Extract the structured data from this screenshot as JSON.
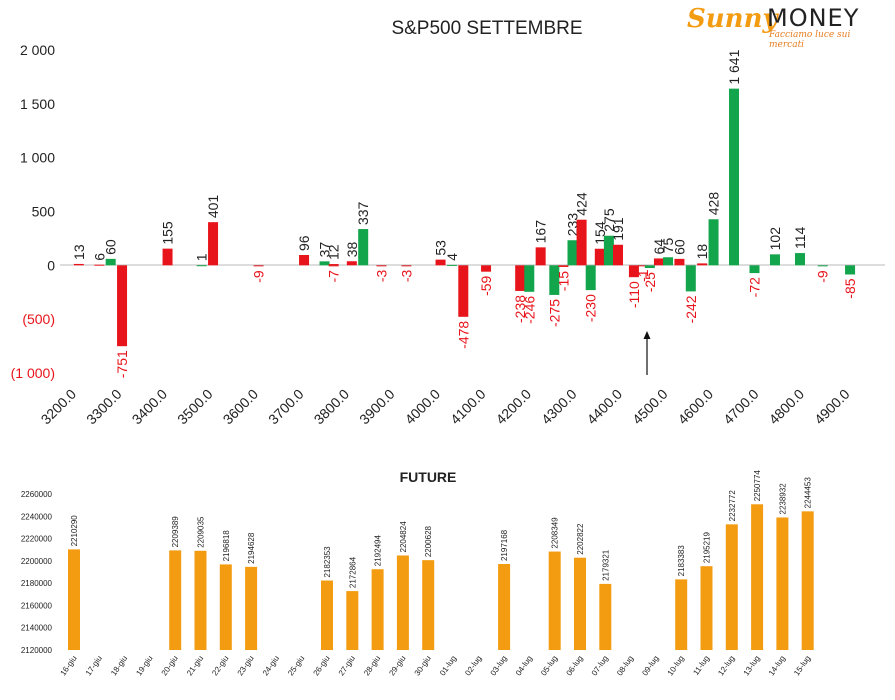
{
  "logo": {
    "brand_a": "Sunny",
    "brand_b": "MONEY",
    "tagline": "Facciamo luce sui mercati"
  },
  "chart_data": [
    {
      "type": "bar",
      "title": "S&P500 SETTEMBRE",
      "xlabel": "",
      "ylabel": "",
      "ylim": [
        -1000,
        2000
      ],
      "y_ticks": [
        2000,
        1500,
        1000,
        500,
        0,
        -500,
        -1000
      ],
      "y_tick_labels": [
        "2 000",
        "1 500",
        "1 000",
        "500",
        "0",
        "(500)",
        "(1 000)"
      ],
      "x_tick_labels": [
        "3200.0",
        "3300.0",
        "3400.0",
        "3500.0",
        "3600.0",
        "3700.0",
        "3800.0",
        "3900.0",
        "4000.0",
        "4100.0",
        "4200.0",
        "4300.0",
        "4400.0",
        "4500.0",
        "4600.0",
        "4700.0",
        "4800.0",
        "4900.0"
      ],
      "colors": {
        "red": "#e8141b",
        "green": "#13a54b",
        "positive_label": "#222222",
        "negative_label": "#e8141b"
      },
      "bars": [
        {
          "pos": 0,
          "offset": 0.15,
          "value": 13,
          "color": "red",
          "label": "13"
        },
        {
          "pos": 1,
          "offset": -0.4,
          "value": 6,
          "color": "red",
          "label": "6"
        },
        {
          "pos": 1,
          "offset": -0.15,
          "value": 60,
          "color": "green",
          "label": "60"
        },
        {
          "pos": 1,
          "offset": 0.1,
          "value": -751,
          "color": "red",
          "label": "-751"
        },
        {
          "pos": 2,
          "offset": 0.1,
          "value": 155,
          "color": "red",
          "label": "155"
        },
        {
          "pos": 3,
          "offset": -0.15,
          "value": 1,
          "color": "green",
          "label": "1"
        },
        {
          "pos": 3,
          "offset": 0.1,
          "value": 401,
          "color": "red",
          "label": "401"
        },
        {
          "pos": 4,
          "offset": 0.1,
          "value": -9,
          "color": "red",
          "label": "-9"
        },
        {
          "pos": 5,
          "offset": 0.1,
          "value": 96,
          "color": "red",
          "label": "96"
        },
        {
          "pos": 5,
          "offset": 0.75,
          "value": -7,
          "color": "red",
          "label": "-7"
        },
        {
          "pos": 6,
          "offset": -0.45,
          "value": 37,
          "color": "green",
          "label": "37"
        },
        {
          "pos": 6,
          "offset": -0.25,
          "value": 12,
          "color": "red",
          "label": "12"
        },
        {
          "pos": 6,
          "offset": 0.15,
          "value": 38,
          "color": "red",
          "label": "38"
        },
        {
          "pos": 6,
          "offset": 0.4,
          "value": 337,
          "color": "green",
          "label": "337"
        },
        {
          "pos": 7,
          "offset": -0.2,
          "value": -3,
          "color": "red",
          "label": "-3"
        },
        {
          "pos": 7,
          "offset": 0.35,
          "value": -3,
          "color": "red",
          "label": "-3"
        },
        {
          "pos": 8,
          "offset": 0.1,
          "value": 53,
          "color": "red",
          "label": "53"
        },
        {
          "pos": 8,
          "offset": 0.35,
          "value": 4,
          "color": "green",
          "label": "4"
        },
        {
          "pos": 8,
          "offset": 0.6,
          "value": -478,
          "color": "red",
          "label": "-478"
        },
        {
          "pos": 9,
          "offset": 0.1,
          "value": -59,
          "color": "red",
          "label": "-59"
        },
        {
          "pos": 9,
          "offset": 0.85,
          "value": -238,
          "color": "red",
          "label": "-238"
        },
        {
          "pos": 10,
          "offset": 0.05,
          "value": -246,
          "color": "green",
          "label": "-246"
        },
        {
          "pos": 10,
          "offset": 0.3,
          "value": 167,
          "color": "red",
          "label": "167"
        },
        {
          "pos": 10,
          "offset": 0.6,
          "value": -275,
          "color": "green",
          "label": "-275"
        },
        {
          "pos": 10,
          "offset": 0.8,
          "value": -15,
          "color": "red",
          "label": "-15"
        },
        {
          "pos": 11,
          "offset": 0.0,
          "value": 233,
          "color": "green",
          "label": "233"
        },
        {
          "pos": 11,
          "offset": 0.2,
          "value": 424,
          "color": "red",
          "label": "424"
        },
        {
          "pos": 11,
          "offset": 0.4,
          "value": -230,
          "color": "green",
          "label": "-230"
        },
        {
          "pos": 11,
          "offset": 0.6,
          "value": 154,
          "color": "red",
          "label": "154"
        },
        {
          "pos": 11,
          "offset": 0.8,
          "value": 275,
          "color": "green",
          "label": "275"
        },
        {
          "pos": 12,
          "offset": 0.0,
          "value": 191,
          "color": "red",
          "label": "191"
        },
        {
          "pos": 12,
          "offset": 0.35,
          "value": -110,
          "color": "red",
          "label": "-110"
        },
        {
          "pos": 12,
          "offset": 0.55,
          "value": -1,
          "color": "red",
          "label": "-1"
        },
        {
          "pos": 12,
          "offset": 0.7,
          "value": -25,
          "color": "green",
          "label": "-25"
        },
        {
          "pos": 12,
          "offset": 0.9,
          "value": 64,
          "color": "red",
          "label": "64"
        },
        {
          "pos": 13,
          "offset": 0.1,
          "value": 75,
          "color": "green",
          "label": "75"
        },
        {
          "pos": 13,
          "offset": 0.35,
          "value": 60,
          "color": "red",
          "label": "60"
        },
        {
          "pos": 13,
          "offset": 0.6,
          "value": -242,
          "color": "green",
          "label": "-242"
        },
        {
          "pos": 13,
          "offset": 0.85,
          "value": 18,
          "color": "red",
          "label": "18"
        },
        {
          "pos": 14,
          "offset": 0.1,
          "value": 428,
          "color": "green",
          "label": "428"
        },
        {
          "pos": 14,
          "offset": 0.55,
          "value": 1641,
          "color": "green",
          "label": "1 641"
        },
        {
          "pos": 15,
          "offset": 0.0,
          "value": -72,
          "color": "green",
          "label": "-72"
        },
        {
          "pos": 15,
          "offset": 0.45,
          "value": 102,
          "color": "green",
          "label": "102"
        },
        {
          "pos": 16,
          "offset": 0.0,
          "value": 114,
          "color": "green",
          "label": "114"
        },
        {
          "pos": 16,
          "offset": 0.5,
          "value": -9,
          "color": "green",
          "label": "-9"
        },
        {
          "pos": 17,
          "offset": 0.1,
          "value": -85,
          "color": "green",
          "label": "-85"
        }
      ]
    },
    {
      "type": "bar",
      "title": "FUTURE",
      "xlabel": "",
      "ylabel": "",
      "ylim": [
        2120000,
        2260000
      ],
      "y_ticks": [
        2120000,
        2140000,
        2160000,
        2180000,
        2200000,
        2220000,
        2240000,
        2260000
      ],
      "y_tick_labels": [
        "2120000",
        "2140000",
        "2160000",
        "2180000",
        "2200000",
        "2220000",
        "2240000",
        "2260000"
      ],
      "bar_color": "#f39c12",
      "categories": [
        "16-giu",
        "17-giu",
        "18-giu",
        "19-giu",
        "20-giu",
        "21-giu",
        "22-giu",
        "23-giu",
        "24-giu",
        "25-giu",
        "26-giu",
        "27-giu",
        "28-giu",
        "29-giu",
        "30-giu",
        "01-lug",
        "02-lug",
        "03-lug",
        "04-lug",
        "05-lug",
        "06-lug",
        "07-lug",
        "08-lug",
        "09-lug",
        "10-lug",
        "11-lug",
        "12-lug",
        "13-lug",
        "14-lug",
        "15-lug"
      ],
      "values": [
        2210290,
        null,
        null,
        null,
        2209389,
        2209035,
        2196818,
        2194628,
        null,
        null,
        2182353,
        2172864,
        2192494,
        2204824,
        2200628,
        null,
        null,
        2197168,
        null,
        2208349,
        2202822,
        2179321,
        null,
        null,
        2183383,
        2195219,
        2232772,
        2250774,
        2238932,
        2244453
      ],
      "labels": [
        "2210290",
        "",
        "",
        "",
        "2209389",
        "2209035",
        "2196818",
        "2194628",
        "",
        "",
        "2182353",
        "2172864",
        "2192494",
        "2204824",
        "2200628",
        "",
        "",
        "2197168",
        "",
        "2208349",
        "2202822",
        "2179321",
        "",
        "",
        "2183383",
        "2195219",
        "2232772",
        "2250774",
        "2238932",
        "2244453"
      ]
    }
  ]
}
